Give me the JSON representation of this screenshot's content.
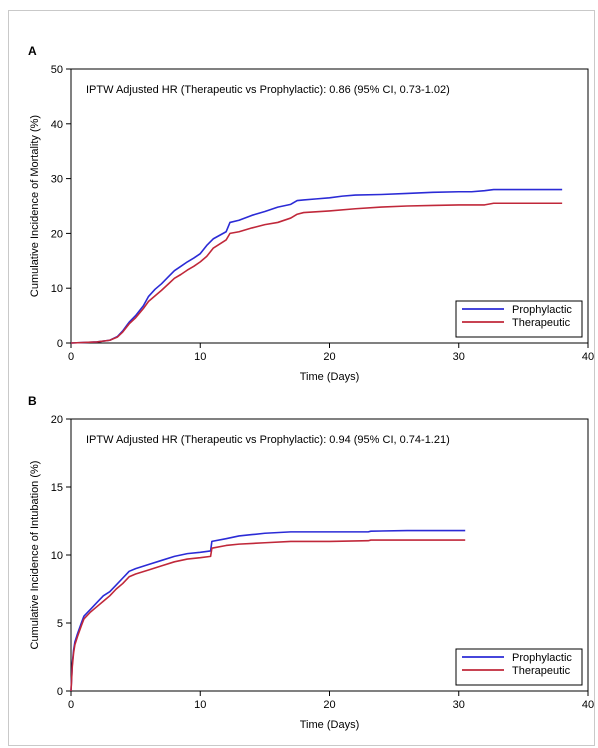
{
  "chart_data": [
    {
      "type": "line",
      "panel_label": "A",
      "annotation": "IPTW Adjusted HR (Therapeutic vs Prophylactic): 0.86 (95% CI, 0.73-1.02)",
      "xlabel": "Time (Days)",
      "ylabel": "Cumulative Incidence of Mortality (%)",
      "xlim": [
        0,
        40
      ],
      "ylim": [
        0,
        50
      ],
      "x_ticks": [
        0,
        10,
        20,
        30,
        40
      ],
      "y_ticks": [
        0,
        10,
        20,
        30,
        40,
        50
      ],
      "legend_position": "bottom-right",
      "grid": false,
      "series": [
        {
          "name": "Prophylactic",
          "color": "#2b2bd6",
          "points": [
            [
              0,
              0
            ],
            [
              2,
              0.2
            ],
            [
              3,
              0.5
            ],
            [
              3.6,
              1.2
            ],
            [
              4,
              2.2
            ],
            [
              4.5,
              3.8
            ],
            [
              5,
              5
            ],
            [
              5.6,
              6.8
            ],
            [
              6,
              8.5
            ],
            [
              6.5,
              9.8
            ],
            [
              7,
              10.8
            ],
            [
              7.5,
              12
            ],
            [
              8,
              13.2
            ],
            [
              8.5,
              14
            ],
            [
              9,
              14.8
            ],
            [
              9.5,
              15.5
            ],
            [
              10,
              16.3
            ],
            [
              10.5,
              17.8
            ],
            [
              11,
              19
            ],
            [
              12,
              20.3
            ],
            [
              12.3,
              22
            ],
            [
              13,
              22.4
            ],
            [
              14,
              23.3
            ],
            [
              15,
              24
            ],
            [
              16,
              24.8
            ],
            [
              17,
              25.3
            ],
            [
              17.5,
              26
            ],
            [
              18,
              26.1
            ],
            [
              19,
              26.3
            ],
            [
              20,
              26.5
            ],
            [
              21,
              26.8
            ],
            [
              22,
              27
            ],
            [
              24,
              27.1
            ],
            [
              26,
              27.3
            ],
            [
              28,
              27.5
            ],
            [
              30,
              27.6
            ],
            [
              31,
              27.6
            ],
            [
              32,
              27.8
            ],
            [
              32.7,
              28
            ],
            [
              34,
              28
            ],
            [
              36,
              28
            ],
            [
              38,
              28
            ]
          ]
        },
        {
          "name": "Therapeutic",
          "color": "#c0283a",
          "points": [
            [
              0,
              0
            ],
            [
              2,
              0.2
            ],
            [
              3,
              0.5
            ],
            [
              3.6,
              1.1
            ],
            [
              4,
              2
            ],
            [
              4.5,
              3.5
            ],
            [
              5,
              4.6
            ],
            [
              5.6,
              6.3
            ],
            [
              6,
              7.6
            ],
            [
              6.5,
              8.6
            ],
            [
              7,
              9.6
            ],
            [
              7.5,
              10.7
            ],
            [
              8,
              11.8
            ],
            [
              8.5,
              12.5
            ],
            [
              9,
              13.3
            ],
            [
              9.5,
              14
            ],
            [
              10,
              14.8
            ],
            [
              10.5,
              15.8
            ],
            [
              11,
              17.3
            ],
            [
              12,
              18.8
            ],
            [
              12.3,
              20
            ],
            [
              13,
              20.3
            ],
            [
              14,
              21
            ],
            [
              15,
              21.6
            ],
            [
              16,
              22
            ],
            [
              17,
              22.8
            ],
            [
              17.5,
              23.5
            ],
            [
              18,
              23.8
            ],
            [
              20,
              24.1
            ],
            [
              22,
              24.5
            ],
            [
              24,
              24.8
            ],
            [
              26,
              25
            ],
            [
              28,
              25.1
            ],
            [
              30,
              25.2
            ],
            [
              32,
              25.2
            ],
            [
              32.7,
              25.5
            ],
            [
              34,
              25.5
            ],
            [
              36,
              25.5
            ],
            [
              38,
              25.5
            ]
          ]
        }
      ]
    },
    {
      "type": "line",
      "panel_label": "B",
      "annotation": "IPTW Adjusted HR (Therapeutic vs Prophylactic): 0.94 (95% CI, 0.74-1.21)",
      "xlabel": "Time (Days)",
      "ylabel": "Cumulative Incidence of Intubation (%)",
      "xlim": [
        0,
        40
      ],
      "ylim": [
        0,
        20
      ],
      "x_ticks": [
        0,
        10,
        20,
        30,
        40
      ],
      "y_ticks": [
        0,
        5,
        10,
        15,
        20
      ],
      "legend_position": "bottom-right",
      "grid": false,
      "series": [
        {
          "name": "Prophylactic",
          "color": "#2b2bd6",
          "points": [
            [
              0,
              0
            ],
            [
              0.1,
              2
            ],
            [
              0.2,
              3
            ],
            [
              0.3,
              3.6
            ],
            [
              0.5,
              4.2
            ],
            [
              0.8,
              5
            ],
            [
              1,
              5.5
            ],
            [
              1.5,
              6
            ],
            [
              2,
              6.5
            ],
            [
              2.5,
              7
            ],
            [
              3,
              7.3
            ],
            [
              3.5,
              7.8
            ],
            [
              4,
              8.3
            ],
            [
              4.5,
              8.8
            ],
            [
              5,
              9
            ],
            [
              6,
              9.3
            ],
            [
              7,
              9.6
            ],
            [
              8,
              9.9
            ],
            [
              9,
              10.1
            ],
            [
              10,
              10.2
            ],
            [
              10.8,
              10.3
            ],
            [
              10.9,
              11
            ],
            [
              12,
              11.2
            ],
            [
              13,
              11.4
            ],
            [
              14,
              11.5
            ],
            [
              15,
              11.6
            ],
            [
              17,
              11.7
            ],
            [
              20,
              11.7
            ],
            [
              23,
              11.7
            ],
            [
              23.2,
              11.75
            ],
            [
              26,
              11.8
            ],
            [
              30.5,
              11.8
            ]
          ]
        },
        {
          "name": "Therapeutic",
          "color": "#c0283a",
          "points": [
            [
              0,
              0
            ],
            [
              0.1,
              1.8
            ],
            [
              0.2,
              2.8
            ],
            [
              0.3,
              3.4
            ],
            [
              0.5,
              4
            ],
            [
              0.8,
              4.8
            ],
            [
              1,
              5.3
            ],
            [
              1.5,
              5.8
            ],
            [
              2,
              6.2
            ],
            [
              2.5,
              6.6
            ],
            [
              3,
              7
            ],
            [
              3.5,
              7.5
            ],
            [
              4,
              7.9
            ],
            [
              4.5,
              8.4
            ],
            [
              5,
              8.6
            ],
            [
              6,
              8.9
            ],
            [
              7,
              9.2
            ],
            [
              8,
              9.5
            ],
            [
              9,
              9.7
            ],
            [
              10,
              9.8
            ],
            [
              10.8,
              9.9
            ],
            [
              10.9,
              10.5
            ],
            [
              12,
              10.7
            ],
            [
              13,
              10.8
            ],
            [
              15,
              10.9
            ],
            [
              17,
              11
            ],
            [
              20,
              11
            ],
            [
              23,
              11.05
            ],
            [
              23.2,
              11.1
            ],
            [
              26,
              11.1
            ],
            [
              30.5,
              11.1
            ]
          ]
        }
      ]
    }
  ]
}
